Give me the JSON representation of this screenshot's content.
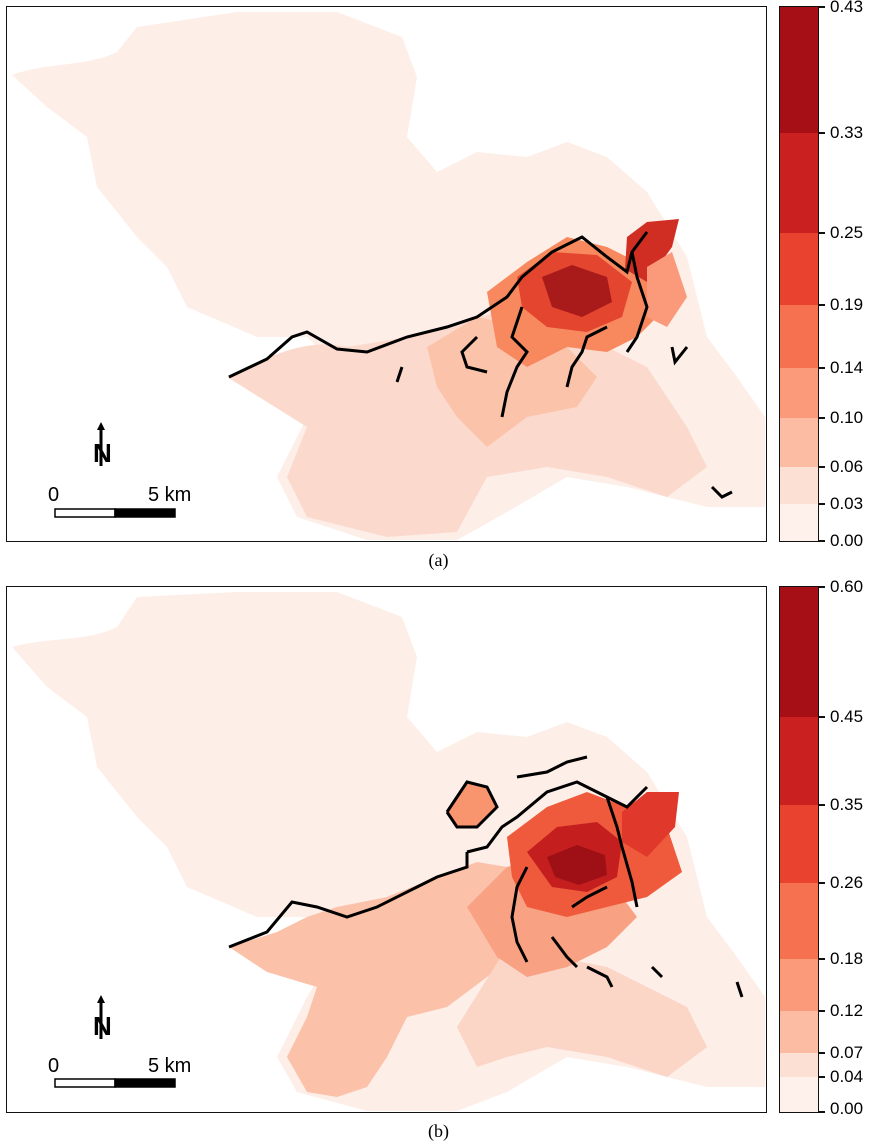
{
  "panels": [
    {
      "id": "a",
      "caption": "(a)",
      "legend": {
        "breaks": [
          "0.00",
          "0.03",
          "0.06",
          "0.10",
          "0.14",
          "0.19",
          "0.25",
          "0.33",
          "0.43"
        ],
        "colors": [
          "#fef1ec",
          "#fde0d4",
          "#fcbca4",
          "#fb9a7a",
          "#f6714f",
          "#e9432f",
          "#cb2020",
          "#a50f15"
        ]
      },
      "scalebar": {
        "start_label": "0",
        "end_label": "5 km"
      },
      "north_arrow": "N"
    },
    {
      "id": "b",
      "caption": "(b)",
      "legend": {
        "breaks": [
          "0.00",
          "0.04",
          "0.07",
          "0.12",
          "0.18",
          "0.26",
          "0.35",
          "0.45",
          "0.60"
        ],
        "colors": [
          "#fef1ec",
          "#fde0d4",
          "#fcbca4",
          "#fb9a7a",
          "#f6714f",
          "#e9432f",
          "#cb2020",
          "#a50f15"
        ]
      },
      "scalebar": {
        "start_label": "0",
        "end_label": "5 km"
      },
      "north_arrow": "N"
    }
  ]
}
